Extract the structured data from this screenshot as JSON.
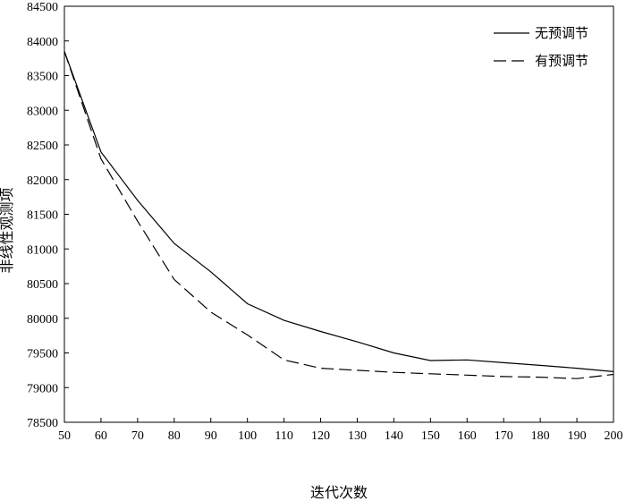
{
  "chart_data": {
    "type": "line",
    "title": "",
    "xlabel": "迭代次数",
    "ylabel": "非线性观测项",
    "xlim": [
      50,
      200
    ],
    "ylim": [
      78500,
      84500
    ],
    "x_ticks": [
      50,
      60,
      70,
      80,
      90,
      100,
      110,
      120,
      130,
      140,
      150,
      160,
      170,
      180,
      190,
      200
    ],
    "y_ticks": [
      78500,
      79000,
      79500,
      80000,
      80500,
      81000,
      81500,
      82000,
      82500,
      83000,
      83500,
      84000,
      84500
    ],
    "grid": false,
    "legend_position": "top-right",
    "series": [
      {
        "name": "无预调节",
        "style": "solid",
        "color": "#000000",
        "x": [
          50,
          60,
          70,
          80,
          90,
          100,
          110,
          120,
          130,
          140,
          150,
          160,
          170,
          180,
          190,
          200
        ],
        "y": [
          83850,
          82400,
          81700,
          81080,
          80670,
          80210,
          79970,
          79810,
          79660,
          79500,
          79390,
          79400,
          79360,
          79320,
          79280,
          79230
        ]
      },
      {
        "name": "有预调节",
        "style": "dashed",
        "color": "#000000",
        "x": [
          50,
          60,
          70,
          80,
          90,
          100,
          110,
          120,
          130,
          140,
          150,
          160,
          170,
          180,
          190,
          200
        ],
        "y": [
          83850,
          82300,
          81400,
          80560,
          80090,
          79760,
          79400,
          79280,
          79250,
          79220,
          79200,
          79180,
          79160,
          79150,
          79130,
          79190
        ]
      }
    ]
  }
}
